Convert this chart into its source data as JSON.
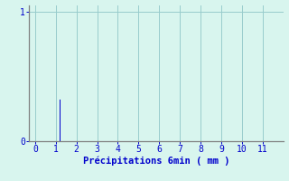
{
  "bar_x": [
    1.2
  ],
  "bar_height": [
    0.32
  ],
  "bar_color": "#0000cc",
  "bar_width": 0.07,
  "xlim": [
    -0.3,
    12.0
  ],
  "ylim": [
    0,
    1.05
  ],
  "xticks": [
    0,
    1,
    2,
    3,
    4,
    5,
    6,
    7,
    8,
    9,
    10,
    11
  ],
  "yticks": [
    0,
    1
  ],
  "ytick_labels": [
    "0",
    "1"
  ],
  "xlabel": "Précipitations 6min ( mm )",
  "xlabel_color": "#0000cc",
  "xlabel_fontsize": 7.5,
  "tick_color": "#0000cc",
  "tick_fontsize": 7,
  "grid_color": "#99cccc",
  "background_color": "#d8f5ee",
  "spine_color": "#808080",
  "left_margin_color": "#c8eee6"
}
